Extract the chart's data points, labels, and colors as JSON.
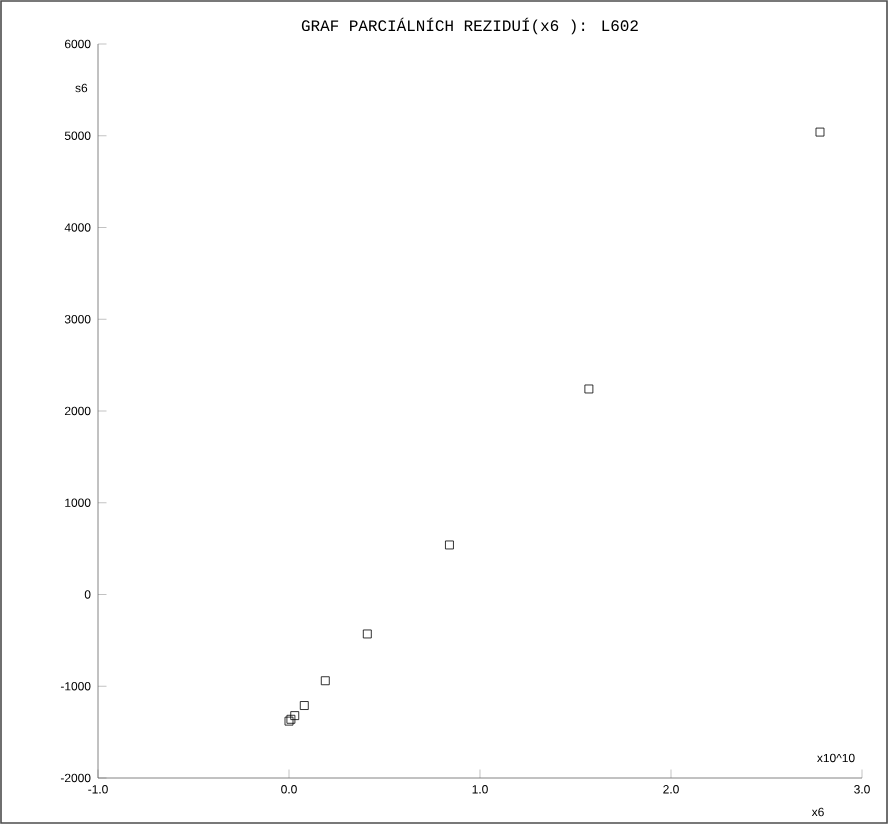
{
  "chart_data": {
    "type": "scatter",
    "title": "GRAF PARCIÁLNÍCH REZIDUÍ(x6 ): L602",
    "xlabel": "x6",
    "ylabel": "s6",
    "annotations": [
      "x10^10"
    ],
    "x": [
      2.78,
      1.57,
      0.84,
      0.41,
      0.19,
      0.08,
      0.03,
      0.01,
      0.0
    ],
    "values": [
      5040,
      2240,
      540,
      -430,
      -940,
      -1210,
      -1320,
      -1360,
      -1380
    ],
    "color": "#000000",
    "marker": "square",
    "xlim": [
      -1.0,
      3.0
    ],
    "xticks": [
      {
        "value": -1.0,
        "label": "-1.0"
      },
      {
        "value": 0.0,
        "label": "0.0"
      },
      {
        "value": 1.0,
        "label": "1.0"
      },
      {
        "value": 2.0,
        "label": "2.0"
      },
      {
        "value": 3.0,
        "label": "3.0"
      }
    ],
    "ylim": [
      -2000,
      6000
    ],
    "yticks": [
      -2000,
      -1000,
      0,
      1000,
      2000,
      3000,
      4000,
      5000,
      6000
    ]
  }
}
